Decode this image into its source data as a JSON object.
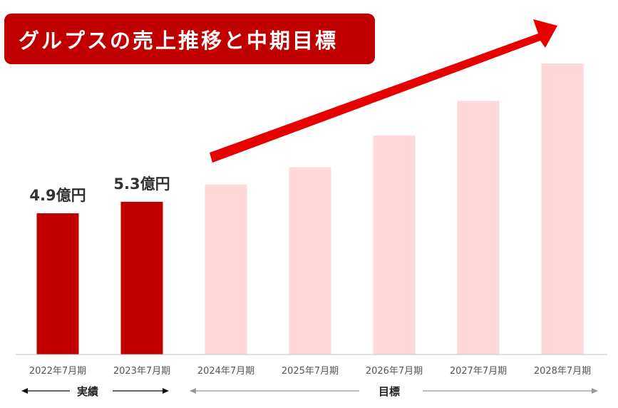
{
  "title": "グルプスの売上推移と中期目標",
  "colors": {
    "actual": "#c00000",
    "target": "#ffd9da",
    "title_bg": "#c00000",
    "arrow": "#e60000"
  },
  "legend": {
    "actual_label": "実績",
    "target_label": "目標"
  },
  "chart_data": {
    "type": "bar",
    "title": "グルプスの売上推移と中期目標",
    "categories": [
      "2022年7月期",
      "2023年7月期",
      "2024年7月期",
      "2025年7月期",
      "2026年7月期",
      "2027年7月期",
      "2028年7月期"
    ],
    "series": [
      {
        "name": "実績",
        "values": [
          4.9,
          5.3,
          null,
          null,
          null,
          null,
          null
        ]
      },
      {
        "name": "目標",
        "values": [
          null,
          null,
          5.9,
          6.5,
          7.6,
          8.8,
          10.1
        ]
      }
    ],
    "data_labels": [
      "4.9億円",
      "5.3億円",
      "",
      "",
      "",
      "",
      ""
    ],
    "ylim": [
      0,
      11
    ],
    "grid": false,
    "trend_arrow": true
  }
}
